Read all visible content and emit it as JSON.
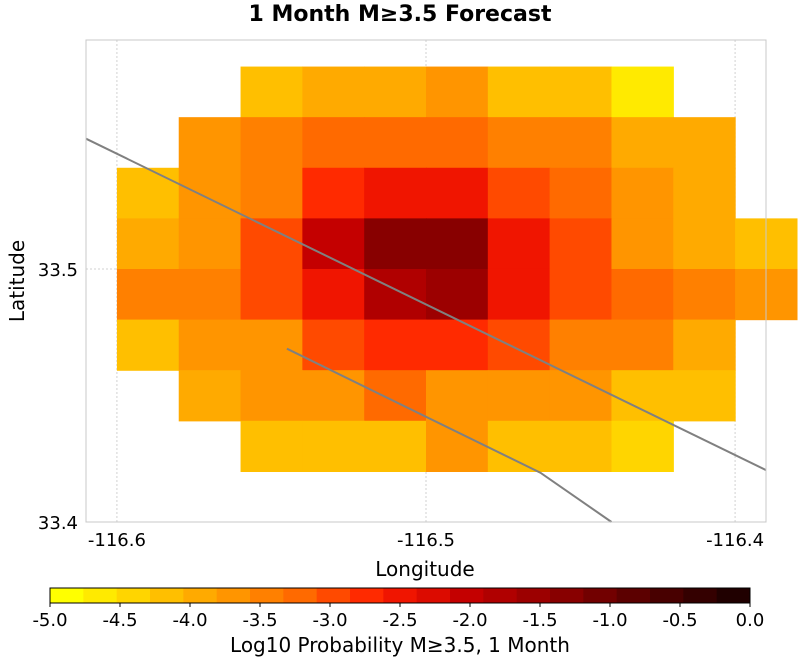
{
  "chart_data": {
    "type": "heatmap",
    "title": "1 Month M≥3.5 Forecast",
    "xlabel": "Longitude",
    "ylabel": "Latitude",
    "xlim": [
      -116.61,
      -116.39
    ],
    "ylim": [
      33.4,
      33.5905
    ],
    "x_ticks": [
      {
        "value": -116.6,
        "label": "-116.6"
      },
      {
        "value": -116.5,
        "label": "-116.5"
      },
      {
        "value": -116.4,
        "label": "-116.4"
      }
    ],
    "y_ticks": [
      {
        "value": 33.4,
        "label": "33.4"
      },
      {
        "value": 33.5,
        "label": "33.5"
      }
    ],
    "grid": true,
    "cell_size_deg": 0.02,
    "rows_lat_top": 33.58,
    "rows": [
      {
        "lon_start": -116.56,
        "values": [
          -4.2,
          -4.0,
          -4.0,
          -3.7,
          -4.2,
          -4.2,
          -4.8
        ]
      },
      {
        "lon_start": -116.58,
        "values": [
          -3.8,
          -3.6,
          -3.3,
          -3.3,
          -3.3,
          -3.5,
          -3.6,
          -3.9,
          -4.0
        ]
      },
      {
        "lon_start": -116.6,
        "values": [
          -4.2,
          -3.7,
          -3.5,
          -2.8,
          -2.5,
          -2.5,
          -3.0,
          -3.3,
          -3.8,
          -4.0
        ]
      },
      {
        "lon_start": -116.6,
        "values": [
          -4.0,
          -3.7,
          -3.0,
          -2.0,
          -1.3,
          -1.3,
          -2.6,
          -3.0,
          -3.7,
          -4.0,
          -4.3
        ]
      },
      {
        "lon_start": -116.6,
        "values": [
          -3.6,
          -3.6,
          -2.9,
          -2.5,
          -1.8,
          -1.6,
          -2.6,
          -3.0,
          -3.2,
          -3.5,
          -3.7
        ]
      },
      {
        "lon_start": -116.6,
        "values": [
          -4.2,
          -3.8,
          -3.7,
          -3.0,
          -2.8,
          -2.8,
          -3.0,
          -3.5,
          -3.6,
          -4.0
        ]
      },
      {
        "lon_start": -116.58,
        "values": [
          -4.0,
          -3.8,
          -3.7,
          -3.3,
          -3.8,
          -3.8,
          -3.7,
          -4.2,
          -4.3
        ]
      },
      {
        "lon_start": -116.56,
        "values": [
          -4.2,
          -4.2,
          -4.2,
          -3.7,
          -4.2,
          -4.2,
          -4.5
        ]
      }
    ],
    "overlay_lines": [
      {
        "color": "#808080",
        "points": [
          [
            -116.61,
            33.5515
          ],
          [
            -116.39,
            33.4205
          ]
        ]
      },
      {
        "color": "#808080",
        "points": [
          [
            -116.545,
            33.4685
          ],
          [
            -116.463,
            33.4195
          ],
          [
            -116.44,
            33.4
          ]
        ]
      }
    ],
    "colorbar": {
      "label": "Log10 Probability M≥3.5, 1 Month",
      "min": -5.0,
      "max": 0.0,
      "ticks": [
        "-5.0",
        "-4.5",
        "-4.0",
        "-3.5",
        "-3.0",
        "-2.5",
        "-2.0",
        "-1.5",
        "-1.0",
        "-0.5",
        "0.0"
      ],
      "colors": [
        "#ffff00",
        "#ffea00",
        "#ffd500",
        "#ffbf00",
        "#ffaa00",
        "#ff9500",
        "#ff8000",
        "#ff6a00",
        "#ff4a00",
        "#ff2a00",
        "#f01500",
        "#dc0b00",
        "#c40000",
        "#b00000",
        "#9c0000",
        "#880000",
        "#720000",
        "#5c0000",
        "#480000",
        "#340000",
        "#200000"
      ]
    }
  }
}
